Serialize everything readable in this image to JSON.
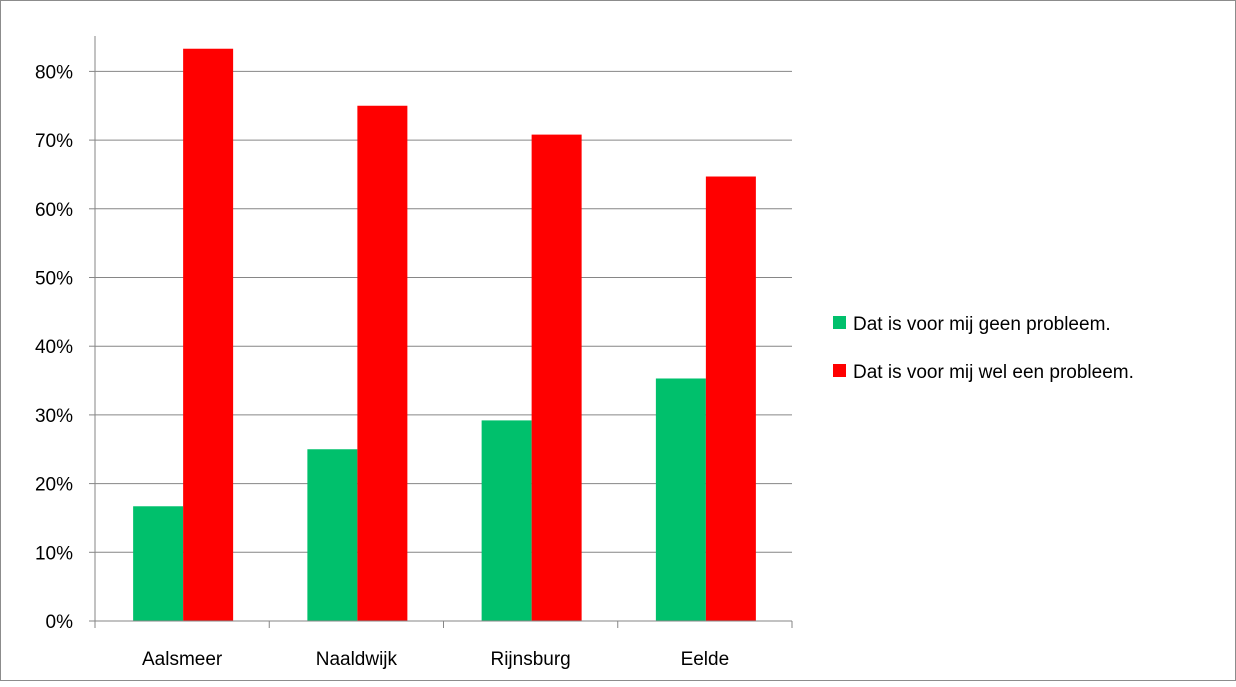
{
  "chart_data": {
    "type": "bar",
    "categories": [
      "Aalsmeer",
      "Naaldwijk",
      "Rijnsburg",
      "Eelde"
    ],
    "series": [
      {
        "name": "Dat is voor mij geen probleem.",
        "color": "#00c06c",
        "values": [
          16.7,
          25.0,
          29.2,
          35.3
        ]
      },
      {
        "name": "Dat is voor mij wel een probleem.",
        "color": "#ff0000",
        "values": [
          83.3,
          75.0,
          70.8,
          64.7
        ]
      }
    ],
    "yticks": [
      "0%",
      "10%",
      "20%",
      "30%",
      "40%",
      "50%",
      "60%",
      "70%",
      "80%"
    ],
    "ylim": [
      0,
      85
    ],
    "grid": true,
    "legend_position": "right"
  }
}
